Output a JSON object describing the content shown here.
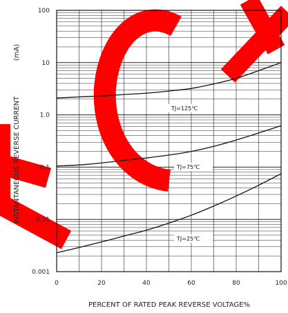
{
  "chart_data": {
    "type": "line",
    "title": "",
    "xlabel": "PERCENT OF RATED PEAK REVERSE VOLTAGE%",
    "ylabel": "INSTANTANEOUS REVERSE CURRENT",
    "ylabel_unit": "(mA)",
    "xlim": [
      0,
      100
    ],
    "ylim": [
      0.001,
      100
    ],
    "y_scale": "log",
    "grid": true,
    "x_ticks": [
      0,
      20,
      40,
      60,
      80,
      100
    ],
    "x_tick_labels": [
      "0",
      "20",
      "40",
      "60",
      "80",
      "100"
    ],
    "y_ticks": [
      0.001,
      0.01,
      0.1,
      1,
      10,
      100
    ],
    "y_tick_labels": [
      "0.001",
      "0.01",
      "0.1",
      "1.0",
      "10",
      "100"
    ],
    "series": [
      {
        "name": "TJ=125℃",
        "color": "#111111",
        "x": [
          0,
          10,
          20,
          30,
          40,
          50,
          60,
          70,
          80,
          90,
          100
        ],
        "values": [
          2.1,
          2.2,
          2.3,
          2.45,
          2.6,
          2.85,
          3.2,
          3.9,
          5.0,
          7.0,
          10.0
        ]
      },
      {
        "name": "TJ=75℃",
        "color": "#111111",
        "x": [
          0,
          10,
          20,
          30,
          40,
          50,
          60,
          70,
          80,
          90,
          100
        ],
        "values": [
          0.105,
          0.11,
          0.12,
          0.135,
          0.15,
          0.17,
          0.2,
          0.25,
          0.33,
          0.45,
          0.62
        ]
      },
      {
        "name": "TJ=25℃",
        "color": "#111111",
        "x": [
          0,
          10,
          20,
          30,
          40,
          50,
          60,
          70,
          80,
          90,
          100
        ],
        "values": [
          0.0023,
          0.0029,
          0.0037,
          0.0048,
          0.0062,
          0.0085,
          0.012,
          0.018,
          0.028,
          0.045,
          0.075
        ]
      }
    ]
  },
  "watermark": {
    "text": "ECH",
    "color": "#ff0000"
  }
}
